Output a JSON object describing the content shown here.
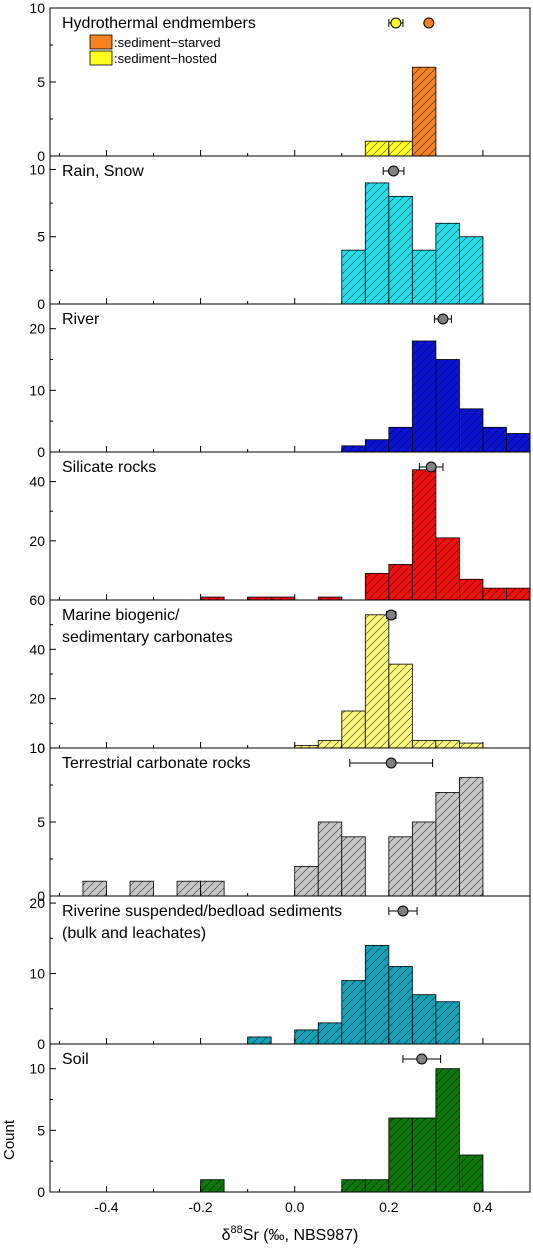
{
  "chart_data": {
    "type": "bar",
    "xlabel_prefix": "δ",
    "xlabel_sup": "88",
    "xlabel_rest": "Sr (‰, NBS987)",
    "ylabel": "Count",
    "xlim": [
      -0.52,
      0.5
    ],
    "x_ticks": [
      -0.4,
      -0.2,
      0.0,
      0.2,
      0.4
    ],
    "x_tick_labels": [
      "-0.4",
      "-0.2",
      "0.0",
      "0.2",
      "0.4"
    ],
    "bin_width": 0.05,
    "panels": [
      {
        "title_lines": [
          "Hydrothermal endmembers"
        ],
        "ylim": [
          0,
          10
        ],
        "y_ticks": [
          0,
          5,
          10
        ],
        "color": "#f58220",
        "bins": [
          {
            "x0": 0.25,
            "count": 6
          }
        ],
        "stack_color": "#ffff1e",
        "stack_bins": [
          {
            "x0": 0.15,
            "count": 1
          },
          {
            "x0": 0.2,
            "count": 1
          }
        ],
        "markers": [
          {
            "mean": 0.215,
            "err": 0.015,
            "color": "#ffff1e"
          },
          {
            "mean": 0.285,
            "err": 0.0,
            "color": "#f58220"
          }
        ],
        "legend": [
          {
            "label": ":sediment−starved",
            "color": "#f58220"
          },
          {
            "label": ":sediment−hosted",
            "color": "#ffff1e"
          }
        ]
      },
      {
        "title_lines": [
          "Rain, Snow"
        ],
        "ylim": [
          0,
          11
        ],
        "y_ticks": [
          0,
          5,
          10
        ],
        "color": "#1fe0ea",
        "bins": [
          {
            "x0": 0.1,
            "count": 4
          },
          {
            "x0": 0.15,
            "count": 9
          },
          {
            "x0": 0.2,
            "count": 8
          },
          {
            "x0": 0.25,
            "count": 4
          },
          {
            "x0": 0.3,
            "count": 6
          },
          {
            "x0": 0.35,
            "count": 5
          }
        ],
        "markers": [
          {
            "mean": 0.21,
            "err": 0.022,
            "color": "#808080"
          }
        ]
      },
      {
        "title_lines": [
          "River"
        ],
        "ylim": [
          0,
          24
        ],
        "y_ticks": [
          0,
          10,
          20
        ],
        "color": "#0b14d6",
        "bins": [
          {
            "x0": 0.1,
            "count": 1
          },
          {
            "x0": 0.15,
            "count": 2
          },
          {
            "x0": 0.2,
            "count": 4
          },
          {
            "x0": 0.25,
            "count": 18
          },
          {
            "x0": 0.3,
            "count": 15
          },
          {
            "x0": 0.35,
            "count": 7
          },
          {
            "x0": 0.4,
            "count": 4
          },
          {
            "x0": 0.45,
            "count": 3
          }
        ],
        "markers": [
          {
            "mean": 0.315,
            "err": 0.018,
            "color": "#808080"
          }
        ]
      },
      {
        "title_lines": [
          "Silicate rocks"
        ],
        "ylim": [
          0,
          50
        ],
        "y_ticks": [
          20,
          40
        ],
        "color": "#f01010",
        "bins": [
          {
            "x0": -0.2,
            "count": 1
          },
          {
            "x0": -0.1,
            "count": 1
          },
          {
            "x0": -0.05,
            "count": 1
          },
          {
            "x0": 0.05,
            "count": 1
          },
          {
            "x0": 0.15,
            "count": 9
          },
          {
            "x0": 0.2,
            "count": 12
          },
          {
            "x0": 0.25,
            "count": 44
          },
          {
            "x0": 0.3,
            "count": 21
          },
          {
            "x0": 0.35,
            "count": 7
          },
          {
            "x0": 0.4,
            "count": 4
          },
          {
            "x0": 0.45,
            "count": 4
          }
        ],
        "markers": [
          {
            "mean": 0.29,
            "err": 0.025,
            "color": "#808080"
          }
        ]
      },
      {
        "title_lines": [
          "Marine biogenic/",
          "sedimentary carbonates"
        ],
        "ylim": [
          0,
          60
        ],
        "y_ticks": [
          0,
          20,
          40,
          60
        ],
        "color": "#f8f57c",
        "bins": [
          {
            "x0": 0.0,
            "count": 1
          },
          {
            "x0": 0.05,
            "count": 3
          },
          {
            "x0": 0.1,
            "count": 15
          },
          {
            "x0": 0.15,
            "count": 54
          },
          {
            "x0": 0.2,
            "count": 34
          },
          {
            "x0": 0.25,
            "count": 3
          },
          {
            "x0": 0.3,
            "count": 3
          },
          {
            "x0": 0.35,
            "count": 2
          }
        ],
        "markers": [
          {
            "mean": 0.205,
            "err": 0.01,
            "color": "#808080"
          }
        ]
      },
      {
        "title_lines": [
          "Terrestrial carbonate rocks"
        ],
        "ylim": [
          0,
          10
        ],
        "y_ticks": [
          0,
          5,
          10
        ],
        "color": "#c6c6c6",
        "bins": [
          {
            "x0": -0.45,
            "count": 1
          },
          {
            "x0": -0.35,
            "count": 1
          },
          {
            "x0": -0.25,
            "count": 1
          },
          {
            "x0": -0.2,
            "count": 1
          },
          {
            "x0": 0.0,
            "count": 2
          },
          {
            "x0": 0.05,
            "count": 5
          },
          {
            "x0": 0.1,
            "count": 4
          },
          {
            "x0": 0.2,
            "count": 4
          },
          {
            "x0": 0.25,
            "count": 5
          },
          {
            "x0": 0.3,
            "count": 7
          },
          {
            "x0": 0.35,
            "count": 8
          }
        ],
        "markers": [
          {
            "mean": 0.205,
            "err": 0.088,
            "color": "#808080"
          }
        ]
      },
      {
        "title_lines": [
          "Riverine suspended/bedload sediments",
          " (bulk and leachates)"
        ],
        "ylim": [
          0,
          21
        ],
        "y_ticks": [
          0,
          10,
          20
        ],
        "color": "#12a3b8",
        "bins": [
          {
            "x0": -0.1,
            "count": 1
          },
          {
            "x0": 0.0,
            "count": 2
          },
          {
            "x0": 0.05,
            "count": 3
          },
          {
            "x0": 0.1,
            "count": 9
          },
          {
            "x0": 0.15,
            "count": 14
          },
          {
            "x0": 0.2,
            "count": 11
          },
          {
            "x0": 0.25,
            "count": 7
          },
          {
            "x0": 0.3,
            "count": 6
          }
        ],
        "markers": [
          {
            "mean": 0.23,
            "err": 0.03,
            "color": "#808080"
          }
        ]
      },
      {
        "title_lines": [
          "Soil"
        ],
        "ylim": [
          0,
          12
        ],
        "y_ticks": [
          0,
          5,
          10
        ],
        "color": "#0c780c",
        "bins": [
          {
            "x0": -0.2,
            "count": 1
          },
          {
            "x0": 0.1,
            "count": 1
          },
          {
            "x0": 0.15,
            "count": 1
          },
          {
            "x0": 0.2,
            "count": 6
          },
          {
            "x0": 0.25,
            "count": 6
          },
          {
            "x0": 0.3,
            "count": 10
          },
          {
            "x0": 0.35,
            "count": 3
          }
        ],
        "markers": [
          {
            "mean": 0.27,
            "err": 0.04,
            "color": "#808080"
          }
        ]
      }
    ]
  }
}
